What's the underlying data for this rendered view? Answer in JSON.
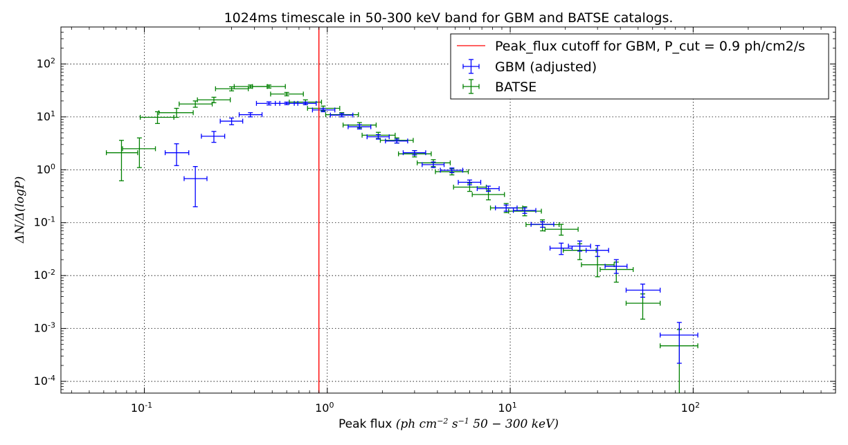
{
  "chart_data": {
    "type": "scatter",
    "title": "1024ms timescale in 50-300 keV band for GBM and BATSE catalogs.",
    "xlabel": "Peak flux",
    "xlabel_math": "(ph cm^-2 s^-1 50-300 keV)",
    "ylabel": "ΔN/Δ(logP)",
    "xscale": "log",
    "yscale": "log",
    "xlim": [
      0.035,
      600
    ],
    "ylim": [
      6e-05,
      500
    ],
    "grid": true,
    "legend_position": "top-right",
    "x_ticks": [
      {
        "value": 0.1,
        "base": "10",
        "exp": "-1"
      },
      {
        "value": 1,
        "base": "10",
        "exp": "0"
      },
      {
        "value": 10,
        "base": "10",
        "exp": "1"
      },
      {
        "value": 100,
        "base": "10",
        "exp": "2"
      }
    ],
    "y_ticks": [
      {
        "value": 0.0001,
        "base": "10",
        "exp": "-4"
      },
      {
        "value": 0.001,
        "base": "10",
        "exp": "-3"
      },
      {
        "value": 0.01,
        "base": "10",
        "exp": "-2"
      },
      {
        "value": 0.1,
        "base": "10",
        "exp": "-1"
      },
      {
        "value": 1,
        "base": "10",
        "exp": "0"
      },
      {
        "value": 10,
        "base": "10",
        "exp": "1"
      },
      {
        "value": 100,
        "base": "10",
        "exp": "2"
      }
    ],
    "cutoff": {
      "x": 0.9,
      "label": "Peak_flux cutoff for GBM, P_cut = 0.9 ph/cm2/s",
      "color": "#ff0000"
    },
    "series": [
      {
        "name": "BATSE",
        "color": "#008000",
        "points": [
          [
            0.075,
            2.1,
            0.062,
            0.092,
            0.62,
            3.6
          ],
          [
            0.094,
            2.5,
            0.076,
            0.115,
            1.1,
            4.0
          ],
          [
            0.118,
            9.8,
            0.095,
            0.145,
            7.5,
            12.5
          ],
          [
            0.15,
            12.0,
            0.12,
            0.185,
            9.8,
            14.5
          ],
          [
            0.19,
            17.5,
            0.155,
            0.235,
            15.2,
            20.0
          ],
          [
            0.24,
            21.0,
            0.195,
            0.295,
            18.5,
            23.5
          ],
          [
            0.3,
            34.0,
            0.245,
            0.37,
            31.0,
            37.0
          ],
          [
            0.38,
            37.5,
            0.31,
            0.47,
            35.0,
            40.0
          ],
          [
            0.48,
            37.5,
            0.39,
            0.59,
            35.0,
            40.0
          ],
          [
            0.6,
            27.0,
            0.49,
            0.74,
            25.0,
            29.0
          ],
          [
            0.76,
            19.0,
            0.62,
            0.93,
            17.0,
            21.0
          ],
          [
            0.95,
            14.5,
            0.78,
            1.17,
            13.0,
            16.0
          ],
          [
            1.2,
            11.0,
            0.98,
            1.48,
            10.0,
            12.0
          ],
          [
            1.5,
            7.0,
            1.22,
            1.85,
            6.2,
            7.8
          ],
          [
            1.9,
            4.5,
            1.55,
            2.35,
            3.9,
            5.1
          ],
          [
            2.4,
            3.6,
            1.95,
            2.95,
            3.2,
            4.0
          ],
          [
            3.0,
            2.0,
            2.45,
            3.7,
            1.75,
            2.3
          ],
          [
            3.8,
            1.35,
            3.1,
            4.7,
            1.15,
            1.55
          ],
          [
            4.8,
            0.92,
            3.9,
            5.9,
            0.8,
            1.05
          ],
          [
            6.0,
            0.47,
            4.9,
            7.4,
            0.39,
            0.56
          ],
          [
            7.6,
            0.34,
            6.2,
            9.3,
            0.27,
            0.41
          ],
          [
            9.5,
            0.19,
            7.8,
            11.7,
            0.155,
            0.23
          ],
          [
            12.0,
            0.165,
            9.8,
            14.8,
            0.135,
            0.2
          ],
          [
            15.0,
            0.092,
            12.2,
            18.5,
            0.07,
            0.113
          ],
          [
            19.0,
            0.075,
            15.5,
            23.5,
            0.058,
            0.093
          ],
          [
            24.0,
            0.03,
            19.5,
            29.5,
            0.02,
            0.04
          ],
          [
            30.0,
            0.016,
            24.5,
            37.0,
            0.0095,
            0.023
          ],
          [
            38.0,
            0.013,
            31.0,
            47.0,
            0.0075,
            0.018
          ],
          [
            53.0,
            0.003,
            43.0,
            66.0,
            0.0015,
            0.0045
          ],
          [
            84.0,
            0.00047,
            66.0,
            106.0,
            3e-05,
            0.00095
          ]
        ]
      },
      {
        "name": "GBM (adjusted)",
        "color": "#0000ff",
        "points": [
          [
            0.15,
            2.1,
            0.13,
            0.175,
            1.2,
            3.1
          ],
          [
            0.19,
            0.68,
            0.165,
            0.22,
            0.2,
            1.15
          ],
          [
            0.24,
            4.3,
            0.205,
            0.275,
            3.3,
            5.3
          ],
          [
            0.3,
            8.3,
            0.26,
            0.345,
            7.1,
            9.5
          ],
          [
            0.38,
            11.0,
            0.33,
            0.44,
            10.0,
            12.0
          ],
          [
            0.48,
            18.0,
            0.41,
            0.55,
            16.8,
            19.2
          ],
          [
            0.6,
            18.0,
            0.52,
            0.69,
            17.0,
            19.0
          ],
          [
            0.76,
            18.0,
            0.66,
            0.87,
            17.0,
            19.0
          ],
          [
            0.95,
            13.5,
            0.83,
            1.1,
            12.5,
            14.5
          ],
          [
            1.2,
            10.8,
            1.04,
            1.38,
            10.0,
            11.6
          ],
          [
            1.5,
            6.5,
            1.3,
            1.73,
            5.9,
            7.1
          ],
          [
            1.9,
            4.2,
            1.65,
            2.18,
            3.8,
            4.6
          ],
          [
            2.4,
            3.5,
            2.08,
            2.75,
            3.2,
            3.8
          ],
          [
            3.0,
            2.1,
            2.6,
            3.45,
            1.9,
            2.3
          ],
          [
            3.8,
            1.25,
            3.3,
            4.35,
            1.1,
            1.4
          ],
          [
            4.8,
            0.98,
            4.15,
            5.5,
            0.88,
            1.08
          ],
          [
            6.0,
            0.58,
            5.2,
            6.9,
            0.52,
            0.64
          ],
          [
            7.6,
            0.44,
            6.6,
            8.7,
            0.39,
            0.49
          ],
          [
            9.5,
            0.19,
            8.3,
            10.9,
            0.165,
            0.215
          ],
          [
            12.0,
            0.17,
            10.4,
            13.8,
            0.15,
            0.19
          ],
          [
            15.0,
            0.093,
            13.0,
            17.3,
            0.082,
            0.104
          ],
          [
            19.0,
            0.033,
            16.5,
            21.8,
            0.025,
            0.041
          ],
          [
            24.0,
            0.036,
            20.8,
            27.5,
            0.029,
            0.045
          ],
          [
            30.0,
            0.03,
            26.0,
            34.5,
            0.023,
            0.037
          ],
          [
            38.0,
            0.015,
            33.0,
            43.5,
            0.011,
            0.02
          ],
          [
            53.0,
            0.0053,
            43.0,
            66.0,
            0.0039,
            0.0069
          ],
          [
            84.0,
            0.00075,
            66.0,
            106.0,
            0.00022,
            0.0013
          ]
        ]
      }
    ],
    "legend": [
      {
        "label": "Peak_flux cutoff for GBM, P_cut = 0.9 ph/cm2/s",
        "kind": "line",
        "color": "#ff0000"
      },
      {
        "label": "GBM (adjusted)",
        "kind": "errorbar",
        "color": "#0000ff"
      },
      {
        "label": "BATSE",
        "kind": "errorbar",
        "color": "#008000"
      }
    ]
  }
}
